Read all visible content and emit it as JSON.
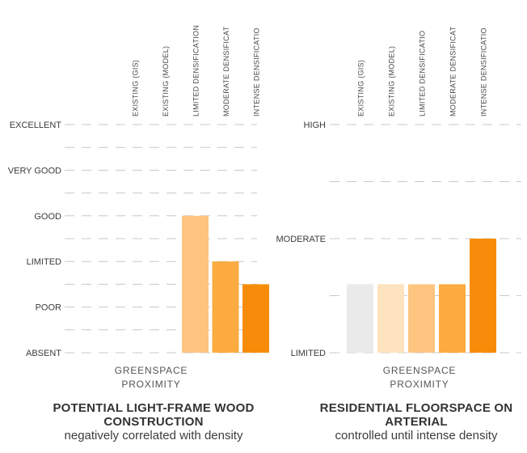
{
  "chart_data": [
    {
      "type": "bar",
      "title": "POTENTIAL LIGHT-FRAME WOOD CONSTRUCTION",
      "subtitle": "negatively correlated with density",
      "xlabel": "GREENSPACE PROXIMITY",
      "categories": [
        "EXISTING (GIS)",
        "EXISTING (MODEL)",
        "LIMITED DENSIFICATION",
        "MODERATE DENSIFICATION",
        "INTENSE DENSIFICATION"
      ],
      "category_labels_shown": [
        "EXISTING (GIS)",
        "EXISTING (MODEL)",
        "LIMITED DENSIFICATION",
        "MODERATE DENSIFICAT",
        "INTENSE DENSIFICATIO"
      ],
      "yticks": [
        "ABSENT",
        "POOR",
        "LIMITED",
        "GOOD",
        "VERY GOOD",
        "EXCELLENT"
      ],
      "ylim": [
        0,
        5
      ],
      "values": [
        null,
        null,
        3,
        2,
        1.5
      ],
      "colors": [
        "#eaeaea",
        "#fde3be",
        "#fdc57f",
        "#fbab3f",
        "#f78c0a"
      ],
      "grid": true
    },
    {
      "type": "bar",
      "title": "RESIDENTIAL FLOORSPACE ON ARTERIAL",
      "subtitle": "controlled until intense density",
      "xlabel": "GREENSPACE PROXIMITY",
      "categories": [
        "EXISTING (GIS)",
        "EXISTING (MODEL)",
        "LIMITED DENSIFICATION",
        "MODERATE DENSIFICATION",
        "INTENSE DENSIFICATION"
      ],
      "category_labels_shown": [
        "EXISTING (GIS)",
        "EXISTING (MODEL)",
        "LIMITED DENSIFICATIO",
        "MODERATE DENSIFICAT",
        "INTENSE DENSIFICATIO"
      ],
      "yticks": [
        "LIMITED",
        "MODERATE",
        "HIGH"
      ],
      "ylim": [
        0,
        2
      ],
      "values": [
        0.6,
        0.6,
        0.6,
        0.6,
        1
      ],
      "colors": [
        "#eaeaea",
        "#fde3be",
        "#fdc57f",
        "#fbab3f",
        "#f78c0a"
      ],
      "grid": true
    }
  ]
}
